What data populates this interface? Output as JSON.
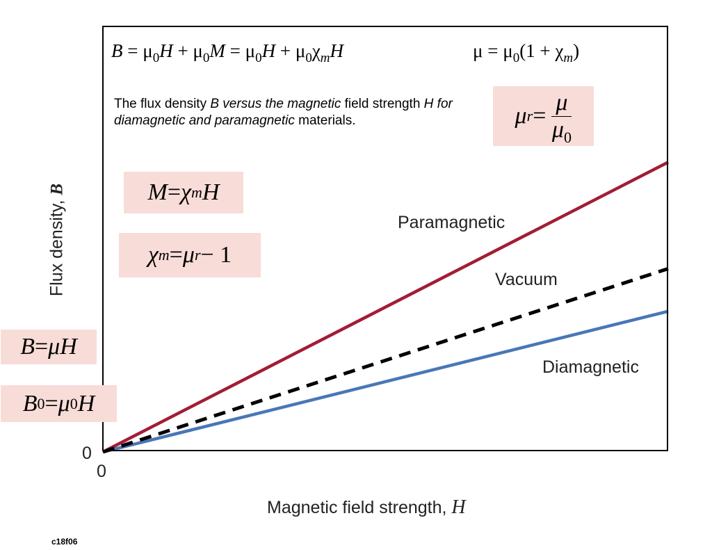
{
  "header_equation": {
    "line1": [
      "B",
      " = μ",
      "0",
      "H",
      " + μ",
      "0",
      "M",
      " = μ",
      "0",
      "H",
      " + μ",
      "0",
      "χ",
      "m",
      "H"
    ],
    "line2": [
      "μ = μ",
      "0",
      "(1 + χ",
      "m",
      ")"
    ]
  },
  "caption": {
    "part1": "The flux density ",
    "part2": "B versus the magnetic",
    "part3": " field strength ",
    "part4": "H for diamagnetic and paramagnetic",
    "part5": " materials."
  },
  "boxes": {
    "mur": {
      "lhs_var": "μ",
      "lhs_sub": "r",
      "eq": " = ",
      "num": "μ",
      "den_var": "μ",
      "den_sub": "0"
    },
    "m_eq": {
      "lhs": "M",
      "eq": " = ",
      "chi": "χ",
      "chi_sub": "m",
      "rhs": "H"
    },
    "chi_eq": {
      "lhs_var": "χ",
      "lhs_sub": "m",
      "eq": " = ",
      "mu": "μ",
      "mu_sub": "r",
      "rest": " − 1"
    },
    "b_eq": {
      "lhs": "B",
      "eq": " = ",
      "rhs": "μH"
    },
    "b0_eq": {
      "lhs_var": "B",
      "lhs_sub": "0",
      "eq": " = ",
      "mu": "μ",
      "mu_sub": "0",
      "rhs": "H"
    }
  },
  "colors": {
    "paramagnetic": "#a21d35",
    "vacuum": "#000000",
    "diamagnetic": "#4a76b8",
    "box_bg": "#f8dcd8"
  },
  "chart_data": {
    "type": "line",
    "xlabel": "Magnetic field strength, ",
    "xlabel_symbol": "H",
    "ylabel": "Flux density, ",
    "ylabel_symbol": "B",
    "x_tick": "0",
    "y_tick": "0",
    "xlim": [
      0,
      1
    ],
    "ylim": [
      0,
      1
    ],
    "grid": false,
    "series": [
      {
        "name": "Paramagnetic",
        "x": [
          0,
          1
        ],
        "y": [
          0,
          0.68
        ],
        "style": "solid",
        "color": "#a21d35"
      },
      {
        "name": "Vacuum",
        "x": [
          0,
          1
        ],
        "y": [
          0,
          0.43
        ],
        "style": "dashed",
        "color": "#000000"
      },
      {
        "name": "Diamagnetic",
        "x": [
          0,
          1
        ],
        "y": [
          0,
          0.33
        ],
        "style": "solid",
        "color": "#4a76b8"
      }
    ]
  },
  "figure_id": "c18f06"
}
